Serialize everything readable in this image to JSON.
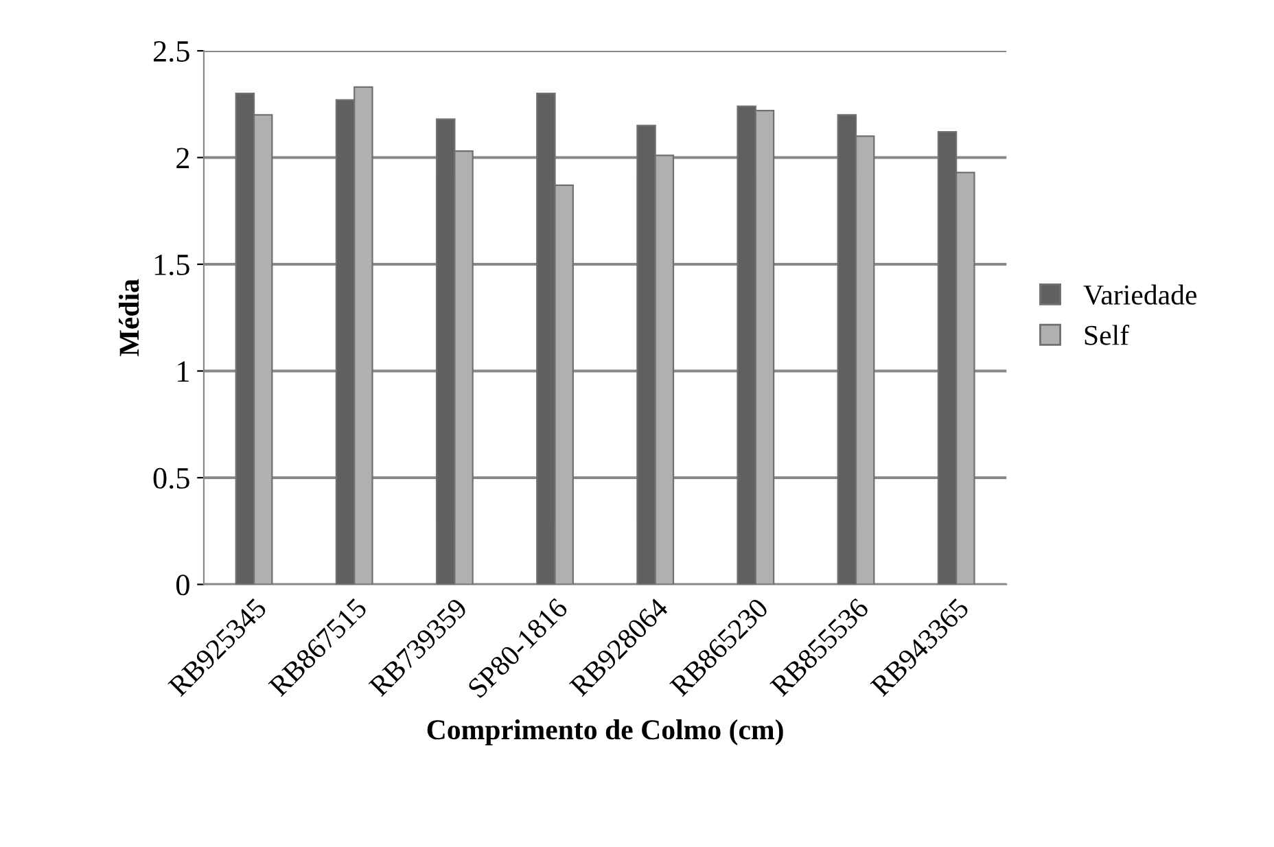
{
  "chart_data": {
    "type": "bar",
    "xlabel": "Comprimento de Colmo (cm)",
    "ylabel": "Média",
    "categories": [
      "RB925345",
      "RB867515",
      "RB739359",
      "SP80-1816",
      "RB928064",
      "RB865230",
      "RB855536",
      "RB943365"
    ],
    "series": [
      {
        "name": "Variedade",
        "color": "#606060",
        "values": [
          2.3,
          2.27,
          2.18,
          2.3,
          2.15,
          2.24,
          2.2,
          2.12
        ]
      },
      {
        "name": "Self",
        "color": "#b0b0b0",
        "values": [
          2.2,
          2.33,
          2.03,
          1.87,
          2.01,
          2.22,
          2.1,
          1.93
        ]
      }
    ],
    "ylim": [
      0,
      2.5
    ],
    "yticks": [
      0,
      0.5,
      1,
      1.5,
      2,
      2.5
    ],
    "grid": "y",
    "legend": "right"
  }
}
